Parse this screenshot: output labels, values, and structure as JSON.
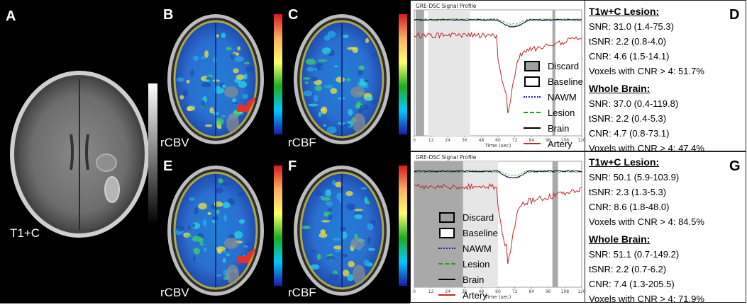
{
  "panels": {
    "A": {
      "letter": "A",
      "caption": "T1+C"
    },
    "B": {
      "letter": "B",
      "caption": "rCBV"
    },
    "C": {
      "letter": "C",
      "caption": "rCBF"
    },
    "E": {
      "letter": "E",
      "caption": "rCBV"
    },
    "F": {
      "letter": "F",
      "caption": "rCBF"
    },
    "D": {
      "letter": "D"
    },
    "G": {
      "letter": "G"
    }
  },
  "plot_top": {
    "title": "GRE-DSC Signal Profile",
    "xlabel": "Time (sec)",
    "ticks": [
      "0",
      "12",
      "24",
      "36",
      "48",
      "60",
      "72",
      "84",
      "96",
      "108",
      "120"
    ]
  },
  "plot_bottom": {
    "title": "GRE-DSC Signal Profile",
    "xlabel": "Time (sec)",
    "ticks": [
      "0",
      "12",
      "24",
      "36",
      "48",
      "60",
      "72",
      "84",
      "96",
      "108",
      "120"
    ]
  },
  "legend": {
    "items": [
      {
        "label": "Discard",
        "color": "#a0a0a0"
      },
      {
        "label": "Baseline",
        "color": "#ffffff"
      },
      {
        "label": "NAWM",
        "color": "#1c2b8c"
      },
      {
        "label": "Lesion",
        "color": "#1aa31a"
      },
      {
        "label": "Brain",
        "color": "#000000"
      },
      {
        "label": "Artery",
        "color": "#c0282a"
      }
    ]
  },
  "stats_top": {
    "lesion_head": "T1w+C Lesion:",
    "lesion": [
      "SNR: 31.0 (1.4-75.3)",
      "tSNR: 2.2 (0.8-4.0)",
      "CNR: 4.6 (1.5-14.1)",
      "Voxels with CNR > 4: 51.7%"
    ],
    "brain_head": "Whole Brain:",
    "brain": [
      "SNR: 37.0 (0.4-119.8)",
      "tSNR: 2.2 (0.4-5.3)",
      "CNR: 4.7 (0.8-73.1)",
      "Voxels with CNR > 4: 47.4%"
    ]
  },
  "stats_bottom": {
    "lesion_head": "T1w+C Lesion:",
    "lesion": [
      "SNR: 50.1 (5.9-103.9)",
      "tSNR: 2.3 (1.3-5.3)",
      "CNR: 8.6 (1.8-48.0)",
      "Voxels with CNR > 4: 84.5%"
    ],
    "brain_head": "Whole Brain:",
    "brain": [
      "SNR: 51.1 (0.7-149.2)",
      "tSNR: 2.2 (0.7-6.2)",
      "CNR: 7.4 (1.3-205.5)",
      "Voxels with CNR > 4: 71.9%"
    ]
  },
  "colors": {
    "artery": "#c0282a",
    "brain": "#000000",
    "nawm": "#1c2b8c",
    "lesion": "#1aa31a",
    "discard": "#a9a9a9",
    "baseline": "#e6e6e6",
    "arrow": "#e8302a"
  }
}
